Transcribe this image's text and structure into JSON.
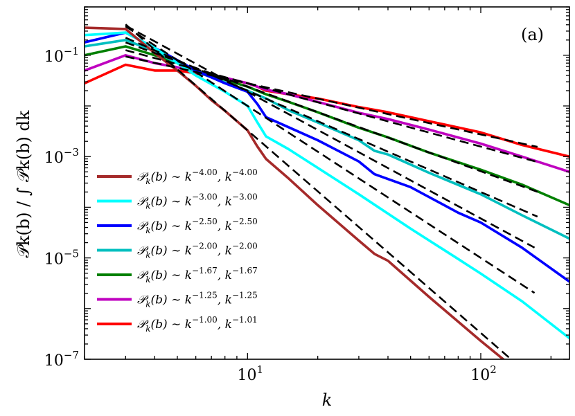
{
  "chart_data": {
    "type": "line",
    "xscale": "log",
    "yscale": "log",
    "xlim": [
      2,
      240
    ],
    "ylim": [
      1e-07,
      0.9
    ],
    "xlabel": "k",
    "ylabel": "𝒫k(b) / ∫ 𝒫k(b) dk",
    "annotation": "(a)",
    "legend_position": "lower-left",
    "x_ticks": [
      {
        "value": 10,
        "base": "10",
        "exp": "1"
      },
      {
        "value": 100,
        "base": "10",
        "exp": "2"
      }
    ],
    "y_ticks": [
      {
        "value": 0.1,
        "base": "10",
        "exp": "−1"
      },
      {
        "value": 0.001,
        "base": "10",
        "exp": "−3"
      },
      {
        "value": 1e-05,
        "base": "10",
        "exp": "−5"
      },
      {
        "value": 1e-07,
        "base": "10",
        "exp": "−7"
      }
    ],
    "fit_style": "dashed black",
    "series": [
      {
        "name": "𝒫k(b) ∼ k^−4.00, k^−4.00",
        "label_lhs": "𝒫",
        "label_sub": "k",
        "label_mid": "(b) ∼ k",
        "exp1": "−4.00",
        "exp2": "−4.00",
        "color": "#a52a2a",
        "x": [
          2,
          3,
          4,
          5,
          6,
          7,
          8,
          10,
          11,
          12,
          15,
          20,
          30,
          35,
          40,
          60,
          100,
          150
        ],
        "y": [
          0.35,
          0.33,
          0.11,
          0.05,
          0.025,
          0.013,
          0.008,
          0.0033,
          0.0016,
          0.0009,
          0.00037,
          0.00011,
          2.2e-05,
          1.2e-05,
          8.8e-06,
          1.7e-06,
          2.3e-07,
          5e-08
        ]
      },
      {
        "name": "𝒫k(b) ∼ k^−3.00, k^−3.00",
        "label_lhs": "𝒫",
        "label_sub": "k",
        "label_mid": "(b) ∼ k",
        "exp1": "−3.00",
        "exp2": "−3.00",
        "color": "#00ffff",
        "x": [
          2,
          3,
          4,
          5,
          6,
          8,
          10,
          11,
          12,
          15,
          20,
          30,
          50,
          80,
          100,
          150,
          240
        ],
        "y": [
          0.25,
          0.28,
          0.14,
          0.07,
          0.04,
          0.019,
          0.01,
          0.0048,
          0.0025,
          0.0014,
          0.0006,
          0.00018,
          3.8e-05,
          9.5e-06,
          4.9e-06,
          1.4e-06,
          2.6e-07
        ]
      },
      {
        "name": "𝒫k(b) ∼ k^−2.50, k^−2.50",
        "label_lhs": "𝒫",
        "label_sub": "k",
        "label_mid": "(b) ∼ k",
        "exp1": "−2.50",
        "exp2": "−2.50",
        "color": "#0000ff",
        "x": [
          2,
          3,
          4,
          5,
          6,
          8,
          10,
          11,
          12,
          15,
          20,
          30,
          35,
          50,
          80,
          100,
          150,
          240
        ],
        "y": [
          0.18,
          0.28,
          0.14,
          0.08,
          0.05,
          0.028,
          0.019,
          0.011,
          0.006,
          0.0038,
          0.0021,
          0.0008,
          0.00045,
          0.00025,
          7.8e-05,
          5e-05,
          1.6e-05,
          3.4e-06
        ]
      },
      {
        "name": "𝒫k(b) ∼ k^−2.00, k^−2.00",
        "label_lhs": "𝒫",
        "label_sub": "k",
        "label_mid": "(b) ∼ k",
        "exp1": "−2.00",
        "exp2": "−2.00",
        "color": "#00bfbf",
        "x": [
          2,
          3,
          4,
          5,
          6,
          8,
          10,
          12,
          15,
          20,
          30,
          35,
          40,
          60,
          100,
          150,
          240
        ],
        "y": [
          0.15,
          0.2,
          0.12,
          0.07,
          0.048,
          0.029,
          0.02,
          0.014,
          0.0082,
          0.0047,
          0.0021,
          0.0013,
          0.0011,
          0.00048,
          0.00018,
          7e-05,
          2.4e-05
        ]
      },
      {
        "name": "𝒫k(b) ∼ k^−1.67, k^−1.67",
        "label_lhs": "𝒫",
        "label_sub": "k",
        "label_mid": "(b) ∼ k",
        "exp1": "−1.67",
        "exp2": "−1.67",
        "color": "#008000",
        "x": [
          2,
          3,
          4,
          5,
          6,
          8,
          10,
          12,
          15,
          20,
          30,
          40,
          60,
          100,
          150,
          240
        ],
        "y": [
          0.1,
          0.15,
          0.1,
          0.07,
          0.05,
          0.033,
          0.024,
          0.017,
          0.012,
          0.0075,
          0.0037,
          0.0024,
          0.0012,
          0.00055,
          0.00028,
          0.00011
        ]
      },
      {
        "name": "𝒫k(b) ∼ k^−1.25, k^−1.25",
        "label_lhs": "𝒫",
        "label_sub": "k",
        "label_mid": "(b) ∼ k",
        "exp1": "−1.25",
        "exp2": "−1.25",
        "color": "#bf00bf",
        "x": [
          2,
          3,
          4,
          5,
          6,
          8,
          10,
          12,
          15,
          20,
          30,
          40,
          60,
          100,
          150,
          240
        ],
        "y": [
          0.05,
          0.1,
          0.07,
          0.058,
          0.047,
          0.036,
          0.028,
          0.021,
          0.017,
          0.012,
          0.0073,
          0.0055,
          0.0034,
          0.0018,
          0.001,
          0.0005
        ]
      },
      {
        "name": "𝒫k(b) ∼ k^−1.00, k^−1.01",
        "label_lhs": "𝒫",
        "label_sub": "k",
        "label_mid": "(b) ∼ k",
        "exp1": "−1.00",
        "exp2": "−1.01",
        "color": "#ff0000",
        "x": [
          2,
          3,
          4,
          5,
          6,
          8,
          10,
          11,
          12,
          15,
          20,
          30,
          40,
          60,
          100,
          150,
          240
        ],
        "y": [
          0.028,
          0.065,
          0.05,
          0.05,
          0.044,
          0.035,
          0.028,
          0.024,
          0.02,
          0.017,
          0.014,
          0.0095,
          0.0075,
          0.005,
          0.003,
          0.0017,
          0.001
        ]
      }
    ],
    "fits": [
      {
        "slope": -4.0,
        "x_range": [
          3,
          155
        ],
        "anchor_x": 10,
        "anchor_y": 0.0033
      },
      {
        "slope": -3.0,
        "x_range": [
          3,
          170
        ],
        "anchor_x": 10,
        "anchor_y": 0.01
      },
      {
        "slope": -2.5,
        "x_range": [
          3,
          170
        ],
        "anchor_x": 10,
        "anchor_y": 0.019
      },
      {
        "slope": -2.0,
        "x_range": [
          3,
          175
        ],
        "anchor_x": 10,
        "anchor_y": 0.02
      },
      {
        "slope": -1.67,
        "x_range": [
          3,
          175
        ],
        "anchor_x": 10,
        "anchor_y": 0.024
      },
      {
        "slope": -1.25,
        "x_range": [
          3,
          175
        ],
        "anchor_x": 10,
        "anchor_y": 0.028
      },
      {
        "slope": -1.01,
        "x_range": [
          3,
          175
        ],
        "anchor_x": 10,
        "anchor_y": 0.028
      }
    ]
  }
}
